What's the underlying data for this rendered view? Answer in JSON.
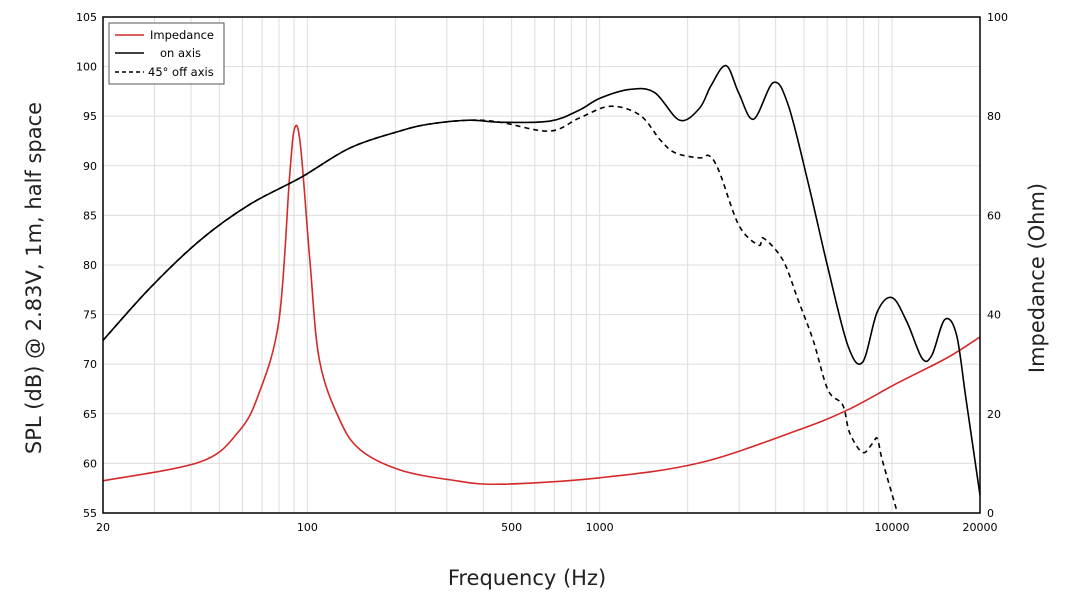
{
  "chart_data": {
    "type": "line",
    "xlabel": "Frequency (Hz)",
    "ylabel": "SPL (dB) @ 2.83V, 1m, half space",
    "y2label": "Impedance (Ohm)",
    "xscale": "log",
    "xlim": [
      20,
      20000
    ],
    "ylim": [
      55,
      105
    ],
    "y2lim": [
      0,
      100
    ],
    "xticks": [
      20,
      100,
      500,
      1000,
      10000,
      20000
    ],
    "yticks": [
      55,
      60,
      65,
      70,
      75,
      80,
      85,
      90,
      95,
      100,
      105
    ],
    "y2ticks": [
      0,
      20,
      40,
      60,
      80,
      100
    ],
    "grid": true,
    "legend_position": "top-left",
    "series": [
      {
        "name": "Impedance",
        "axis": "right",
        "color": "#d42a2a",
        "style": "solid",
        "x": [
          20,
          43,
          58,
          68,
          80,
          87,
          90.5,
          94.7,
          102,
          110,
          129,
          152,
          207,
          307,
          455,
          1000,
          2195,
          4770,
          7060,
          10440,
          15450,
          20000
        ],
        "y": [
          6.5,
          10.3,
          16.3,
          23.8,
          38.9,
          68,
          77.6,
          74.2,
          51,
          30.8,
          18.8,
          12.7,
          8.7,
          6.7,
          5.8,
          7.1,
          10.1,
          16.7,
          20.8,
          26.2,
          31.3,
          35.5
        ]
      },
      {
        "name": "on axis",
        "axis": "left",
        "color": "#000000",
        "style": "solid",
        "x": [
          20,
          29,
          43,
          63.5,
          94.7,
          140,
          207,
          261,
          358,
          455,
          673,
          850,
          1000,
          1266,
          1540,
          1876,
          2195,
          2406,
          2706,
          2994,
          3362,
          3930,
          4418,
          5165,
          6038,
          7060,
          7930,
          8910,
          10020,
          11270,
          12670,
          13690,
          15150,
          16610,
          17930,
          20000
        ],
        "y": [
          72.4,
          77.7,
          82.5,
          86.1,
          88.8,
          91.8,
          93.5,
          94.2,
          94.6,
          94.4,
          94.5,
          95.6,
          96.8,
          97.7,
          97.4,
          94.6,
          95.8,
          98.1,
          100.1,
          97.3,
          94.7,
          98.4,
          96.1,
          88.3,
          79.7,
          71.9,
          70.2,
          75.3,
          76.7,
          74.2,
          70.6,
          70.9,
          74.5,
          73.0,
          66.4,
          56.8
        ]
      },
      {
        "name": "45° off axis",
        "axis": "left",
        "color": "#000000",
        "style": "dashed",
        "x": [
          20,
          29,
          43,
          63.5,
          94.7,
          140,
          207,
          261,
          358,
          455,
          673,
          850,
          1086,
          1374,
          1612,
          1814,
          2195,
          2373,
          2566,
          2994,
          3497,
          3635,
          4233,
          4770,
          5376,
          6038,
          6781,
          7160,
          7930,
          8570,
          8910,
          9270,
          10440
        ],
        "y": [
          72.4,
          77.7,
          82.5,
          86.1,
          88.8,
          91.8,
          93.5,
          94.2,
          94.6,
          94.4,
          93.5,
          94.8,
          96.0,
          95.1,
          92.6,
          91.3,
          90.8,
          91.0,
          89.4,
          84.0,
          82.0,
          82.7,
          80.5,
          76.5,
          72.4,
          67.4,
          65.9,
          63.1,
          61.1,
          62.0,
          62.5,
          60.3,
          55
        ]
      }
    ]
  }
}
